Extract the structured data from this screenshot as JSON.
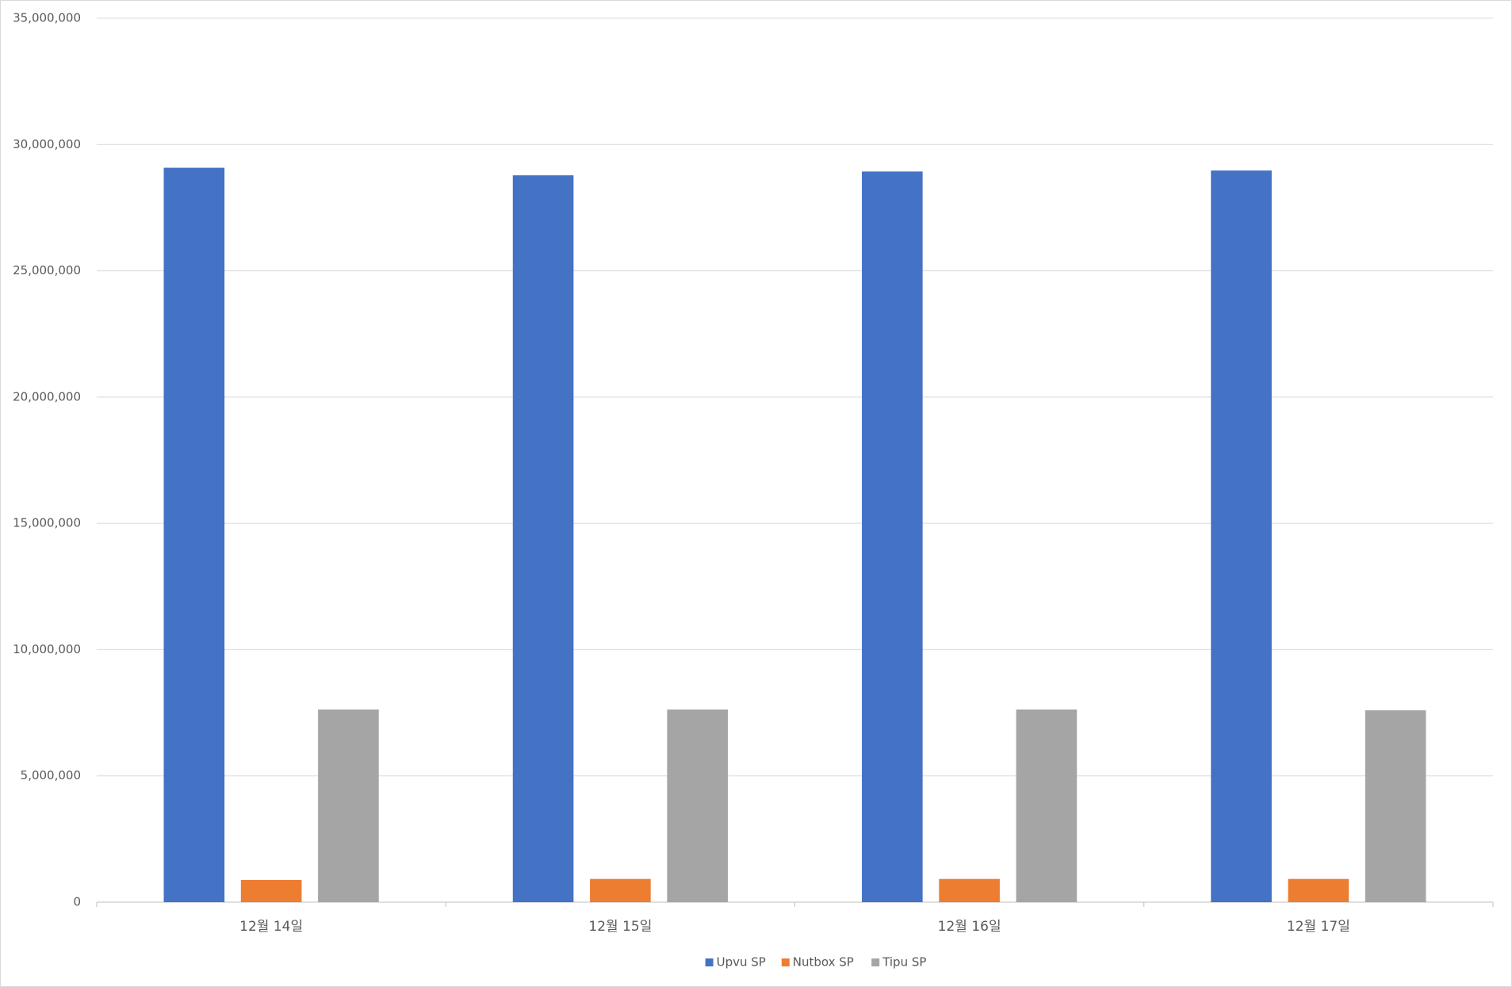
{
  "chart_data": {
    "type": "bar",
    "categories": [
      "12월 14일",
      "12월 15일",
      "12월 16일",
      "12월 17일"
    ],
    "series": [
      {
        "name": "Upvu SP",
        "color": "#4472c4",
        "values": [
          29080000,
          28780000,
          28930000,
          28970000
        ]
      },
      {
        "name": "Nutbox SP",
        "color": "#ed7d31",
        "values": [
          880000,
          920000,
          920000,
          920000
        ]
      },
      {
        "name": "Tipu SP",
        "color": "#a5a5a5",
        "values": [
          7630000,
          7630000,
          7630000,
          7600000
        ]
      }
    ],
    "ylim": [
      0,
      35000000
    ],
    "yticks": [
      0,
      {
        "value": 5000000,
        "label": "5,000,000"
      },
      {
        "value": 10000000,
        "label": "10,000,000"
      },
      {
        "value": 15000000,
        "label": "15,000,000"
      },
      {
        "value": 20000000,
        "label": "20,000,000"
      },
      {
        "value": 25000000,
        "label": "25,000,000"
      },
      {
        "value": 30000000,
        "label": "30,000,000"
      },
      {
        "value": 35000000,
        "label": "35,000,000"
      }
    ],
    "grid": true,
    "legend": "bottom"
  }
}
